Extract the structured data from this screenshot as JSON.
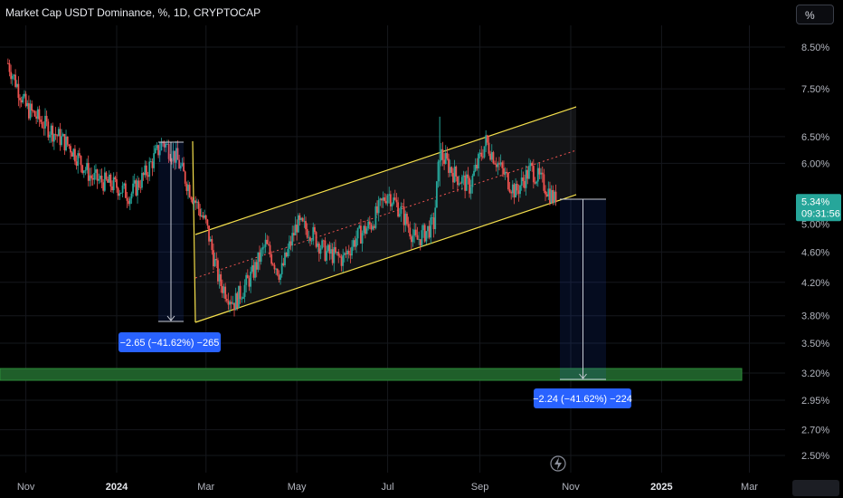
{
  "header": {
    "title": "Market Cap USDT Dominance, %, 1D, CRYPTOCAP",
    "unit_button": "%"
  },
  "price_tag": {
    "value": "5.34%",
    "countdown": "09:31:56",
    "color": "#26a69a"
  },
  "measures": [
    {
      "label": "−2.65 (−41.62%) −265"
    },
    {
      "label": "−2.24 (−41.62%) −224"
    }
  ],
  "colors": {
    "up": "#26a69a",
    "down": "#ef5350",
    "channel": "#f5e04c",
    "measure": "#2962ff",
    "support_zone": "#1f5f2a"
  },
  "chart_data": {
    "type": "candlestick",
    "title": "Market Cap USDT Dominance, %, 1D, CRYPTOCAP",
    "y_scale": "log",
    "ylim": [
      2.42,
      9.2
    ],
    "y_ticks": [
      "8.50%",
      "7.50%",
      "6.50%",
      "6.00%",
      "5.00%",
      "4.60%",
      "4.20%",
      "3.80%",
      "3.50%",
      "3.20%",
      "2.95%",
      "2.70%",
      "2.50%"
    ],
    "x_ticks": [
      "Nov",
      "2024",
      "Mar",
      "May",
      "Jul",
      "Sep",
      "Nov",
      "2025",
      "Mar"
    ],
    "x_range": [
      "2023-10-20",
      "2025-03-20"
    ],
    "series": [
      {
        "values": [
          [
            "2023-10-20",
            8.1
          ],
          [
            "2023-11-01",
            7.1
          ],
          [
            "2023-11-15",
            6.7
          ],
          [
            "2023-12-01",
            6.3
          ],
          [
            "2023-12-15",
            5.75
          ],
          [
            "2024-01-01",
            5.6
          ],
          [
            "2024-01-10",
            5.45
          ],
          [
            "2024-01-20",
            5.8
          ],
          [
            "2024-02-01",
            6.4
          ],
          [
            "2024-02-10",
            6.1
          ],
          [
            "2024-02-20",
            5.5
          ],
          [
            "2024-03-01",
            5.0
          ],
          [
            "2024-03-10",
            4.2
          ],
          [
            "2024-03-20",
            3.95
          ],
          [
            "2024-04-01",
            4.3
          ],
          [
            "2024-04-10",
            4.7
          ],
          [
            "2024-04-20",
            4.3
          ],
          [
            "2024-05-01",
            5.0
          ],
          [
            "2024-05-10",
            4.9
          ],
          [
            "2024-05-20",
            4.6
          ],
          [
            "2024-06-01",
            4.5
          ],
          [
            "2024-06-10",
            4.8
          ],
          [
            "2024-06-20",
            5.0
          ],
          [
            "2024-07-01",
            5.5
          ],
          [
            "2024-07-10",
            5.2
          ],
          [
            "2024-07-20",
            4.75
          ],
          [
            "2024-08-01",
            5.0
          ],
          [
            "2024-08-05",
            6.2
          ],
          [
            "2024-08-15",
            5.8
          ],
          [
            "2024-08-25",
            5.6
          ],
          [
            "2024-09-05",
            6.4
          ],
          [
            "2024-09-15",
            5.9
          ],
          [
            "2024-09-25",
            5.5
          ],
          [
            "2024-10-05",
            5.9
          ],
          [
            "2024-10-15",
            5.6
          ],
          [
            "2024-10-22",
            5.34
          ]
        ]
      }
    ],
    "annotations": {
      "channel": "ascending parallel channel",
      "last_price": 5.34,
      "support_zone": [
        3.1,
        3.2
      ]
    }
  }
}
